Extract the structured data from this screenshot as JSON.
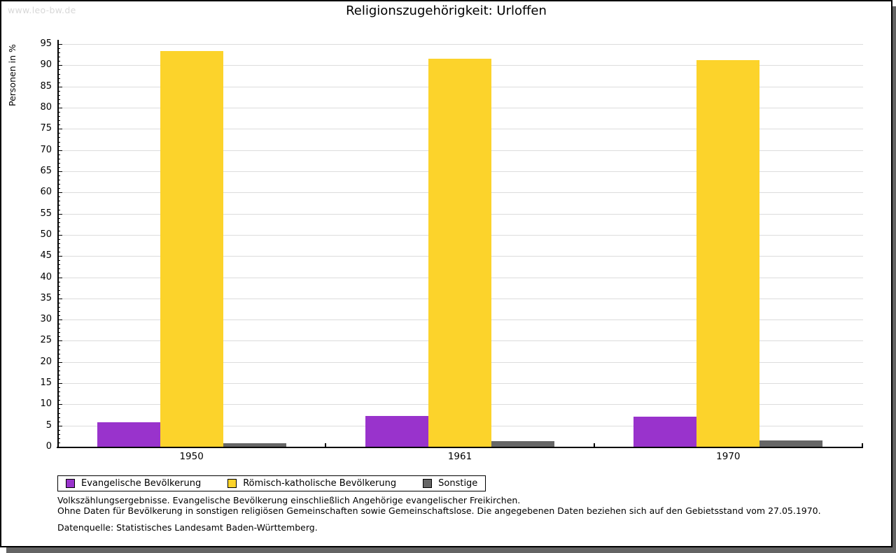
{
  "page": {
    "watermark": "www.leo-bw.de",
    "title": "Religionszugehörigkeit: Urloffen"
  },
  "chart_data": {
    "type": "bar",
    "title": "Religionszugehörigkeit: Urloffen",
    "ylabel": "Personen in %",
    "xlabel": "",
    "categories": [
      "1950",
      "1961",
      "1970"
    ],
    "series": [
      {
        "name": "Evangelische Bevölkerung",
        "color": "#9933cc",
        "values": [
          5.8,
          7.2,
          7.1
        ]
      },
      {
        "name": "Römisch-katholische Bevölkerung",
        "color": "#fcd32b",
        "values": [
          93.4,
          91.5,
          91.2
        ]
      },
      {
        "name": "Sonstige",
        "color": "#666666",
        "values": [
          0.8,
          1.3,
          1.5
        ]
      }
    ],
    "ylim": [
      0,
      96
    ],
    "ytick_major": 5,
    "ytick_minor": 1,
    "grid": true,
    "legend_position": "bottom-left",
    "unit": "%"
  },
  "footnotes": {
    "line1": "Volkszählungsergebnisse. Evangelische Bevölkerung einschließlich Angehörige evangelischer Freikirchen.",
    "line2": "Ohne Daten für Bevölkerung in sonstigen religiösen Gemeinschaften sowie Gemeinschaftslose. Die angegebenen Daten beziehen sich auf den Gebietsstand vom 27.05.1970.",
    "source": "Datenquelle: Statistisches Landesamt Baden-Württemberg."
  },
  "colors": {
    "grid": "#dcdcdc",
    "axis": "#000000",
    "watermark": "#d8d8d8",
    "shadow": "#646464"
  }
}
